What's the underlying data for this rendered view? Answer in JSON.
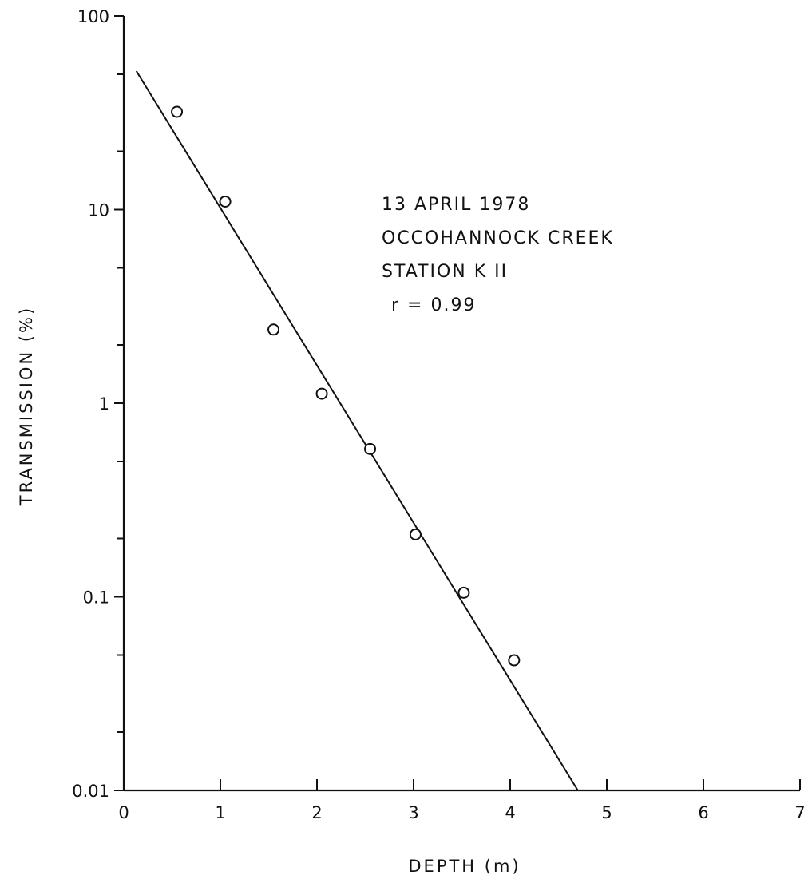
{
  "chart_data": {
    "type": "scatter",
    "xlabel": "DEPTH (m)",
    "ylabel": "TRANSMISSION (%)",
    "xlim": [
      0,
      7
    ],
    "ylim": [
      0.01,
      100
    ],
    "yscale": "log",
    "grid": false,
    "x_ticks": [
      0,
      1,
      2,
      3,
      4,
      5,
      6,
      7
    ],
    "x_tick_labels": [
      "0",
      "1",
      "2",
      "3",
      "4",
      "5",
      "6",
      "7"
    ],
    "y_labeled_ticks": [
      100,
      10,
      1,
      0.1,
      0.01
    ],
    "y_tick_labels": [
      "100",
      "10",
      "1",
      "0.1",
      "0.01"
    ],
    "y_minor_ticks": [
      50,
      20,
      5,
      2,
      0.5,
      0.2,
      0.05,
      0.02
    ],
    "points": [
      {
        "x": 0.55,
        "y": 32
      },
      {
        "x": 1.05,
        "y": 11
      },
      {
        "x": 1.55,
        "y": 2.4
      },
      {
        "x": 2.05,
        "y": 1.12
      },
      {
        "x": 2.55,
        "y": 0.58
      },
      {
        "x": 3.02,
        "y": 0.21
      },
      {
        "x": 3.52,
        "y": 0.105
      },
      {
        "x": 4.04,
        "y": 0.047
      }
    ],
    "fit_line": [
      {
        "x": 0.13,
        "y": 52
      },
      {
        "x": 4.7,
        "y": 0.01
      }
    ],
    "annotation": [
      "13 APRIL 1978",
      "OCCOHANNOCK CREEK",
      "STATION K II",
      "r = 0.99"
    ]
  }
}
